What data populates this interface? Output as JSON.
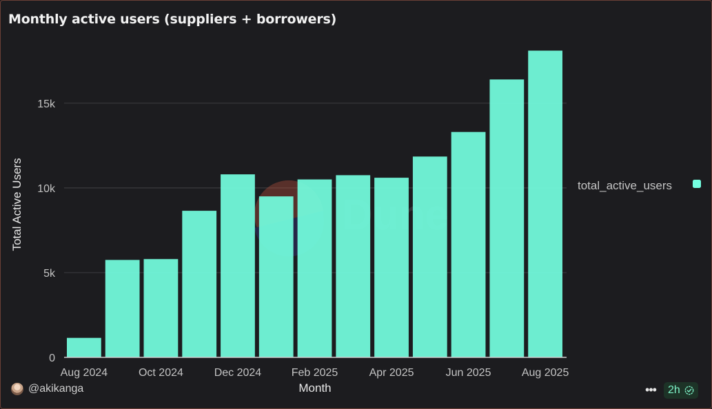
{
  "title": "Monthly active users (suppliers + borrowers)",
  "footer": {
    "username": "@akikanga",
    "more_label": "•••",
    "age_badge": "2h",
    "icons": [
      "avatar",
      "more-icon",
      "check-circle-icon"
    ]
  },
  "watermark": {
    "text": "Dune"
  },
  "colors": {
    "background": "#1c1c1f",
    "bar": "#74ffe0",
    "grid": "#3a3a3e",
    "axis_text": "#c4c4c4",
    "accent": "#7ff3c8"
  },
  "chart_data": {
    "type": "bar",
    "xlabel": "Month",
    "ylabel": "Total Active Users",
    "ylim": [
      0,
      18000
    ],
    "yticks": [
      0,
      5000,
      10000,
      15000
    ],
    "ytick_labels": [
      "0",
      "5k",
      "10k",
      "15k"
    ],
    "categories": [
      "Aug 2024",
      "Sep 2024",
      "Oct 2024",
      "Nov 2024",
      "Dec 2024",
      "Jan 2025",
      "Feb 2025",
      "Mar 2025",
      "Apr 2025",
      "May 2025",
      "Jun 2025",
      "Jul 2025",
      "Aug 2025"
    ],
    "xtick_labels": [
      "Aug 2024",
      "",
      "Oct 2024",
      "",
      "Dec 2024",
      "",
      "Feb 2025",
      "",
      "Apr 2025",
      "",
      "Jun 2025",
      "",
      "Aug 2025"
    ],
    "series": [
      {
        "name": "total_active_users",
        "values": [
          1150,
          5750,
          5800,
          8650,
          10800,
          9500,
          10500,
          10750,
          10600,
          11850,
          13300,
          16400,
          18100
        ]
      }
    ],
    "grid": true,
    "legend": "right"
  }
}
